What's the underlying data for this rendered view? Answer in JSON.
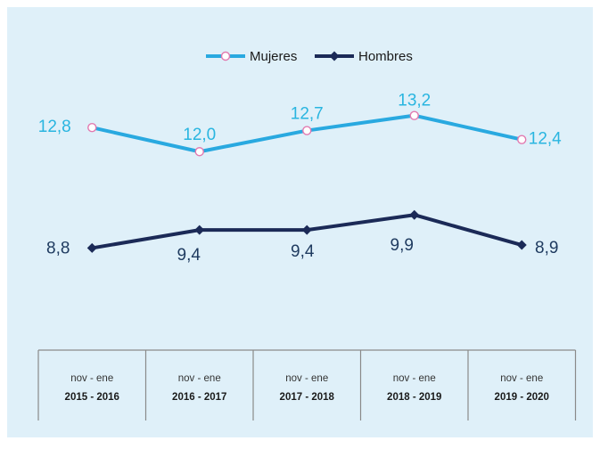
{
  "chart_data": {
    "type": "line",
    "title": "",
    "xlabel": "",
    "ylabel": "",
    "categories": [
      {
        "line1": "nov - ene",
        "line2": "2015 - 2016"
      },
      {
        "line1": "nov - ene",
        "line2": "2016 - 2017"
      },
      {
        "line1": "nov - ene",
        "line2": "2017 - 2018"
      },
      {
        "line1": "nov - ene",
        "line2": "2018 - 2019"
      },
      {
        "line1": "nov - ene",
        "line2": "2019 - 2020"
      }
    ],
    "series": [
      {
        "name": "Mujeres",
        "values": [
          12.8,
          12.0,
          12.7,
          13.2,
          12.4
        ],
        "labels": [
          "12,8",
          "12,0",
          "12,7",
          "13,2",
          "12,4"
        ],
        "color": "#29a9e0",
        "label_color": "#29b5e0",
        "marker": "circle",
        "marker_fill": "#ffffff",
        "marker_stroke": "#e27ab0"
      },
      {
        "name": "Hombres",
        "values": [
          8.8,
          9.4,
          9.4,
          9.9,
          8.9
        ],
        "labels": [
          "8,8",
          "9,4",
          "9,4",
          "9,9",
          "8,9"
        ],
        "color": "#1b2a57",
        "label_color": "#1e3a5f",
        "marker": "diamond",
        "marker_fill": "#1b2a57",
        "marker_stroke": "#1b2a57"
      }
    ],
    "ylim": [
      5.5,
      16.0
    ],
    "legend_position": "top-center",
    "grid": false,
    "background": "#dff0f9"
  }
}
